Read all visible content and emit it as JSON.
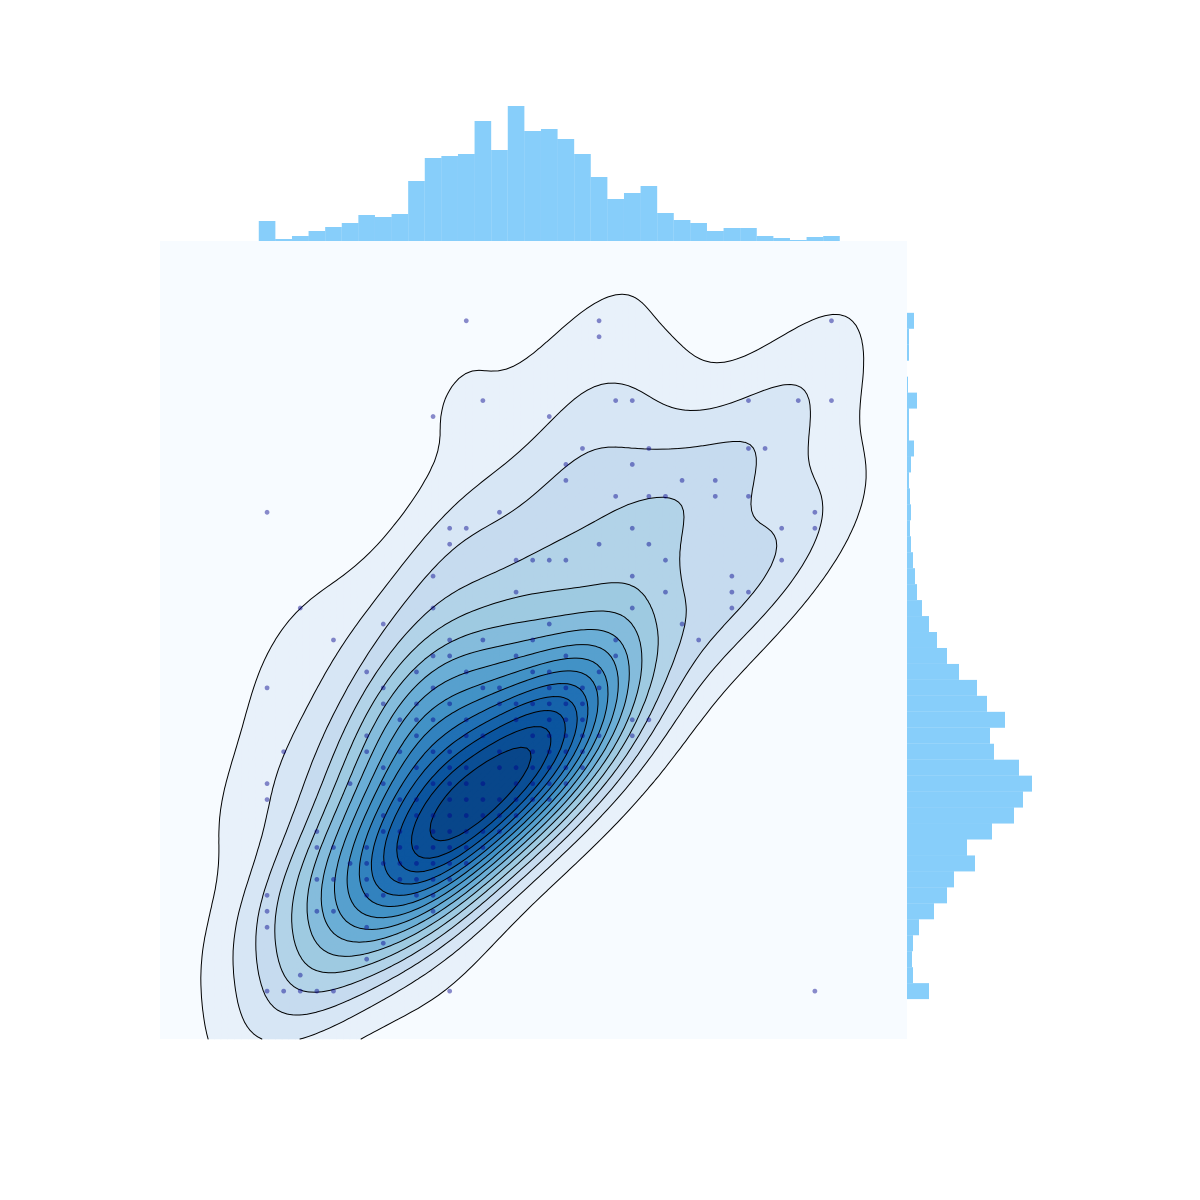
{
  "chart_data": [
    {
      "type": "scatter",
      "x": [
        12,
        20,
        34,
        20,
        13,
        21,
        22,
        29,
        32,
        34,
        10,
        17,
        19,
        23,
        29,
        30,
        18,
        22,
        18,
        25,
        27,
        21,
        23,
        24,
        27,
        29,
        0,
        14,
        33,
        11,
        12,
        22,
        31,
        33,
        11,
        20,
        23,
        15,
        16,
        17,
        18,
        24,
        31,
        10,
        22,
        28,
        15,
        24,
        28,
        29,
        2,
        10,
        22,
        28,
        7,
        17,
        25,
        4,
        11,
        13,
        16,
        21,
        26,
        10,
        11,
        15,
        18,
        21,
        6,
        9,
        12,
        16,
        17,
        20,
        0,
        7,
        10,
        13,
        14,
        17,
        18,
        19,
        20,
        7,
        9,
        11,
        14,
        15,
        16,
        17,
        18,
        19,
        8,
        9,
        10,
        12,
        15,
        17,
        18,
        19,
        22,
        23,
        6,
        9,
        12,
        13,
        16,
        17,
        18,
        19,
        20,
        22,
        1,
        6,
        8,
        10,
        11,
        14,
        16,
        17,
        18,
        19,
        7,
        9,
        11,
        12,
        14,
        15,
        16,
        17,
        18,
        19,
        0,
        5,
        7,
        10,
        11,
        12,
        13,
        15,
        16,
        17,
        18,
        0,
        8,
        9,
        11,
        12,
        13,
        14,
        15,
        16,
        17,
        7,
        9,
        10,
        11,
        12,
        13,
        14,
        15,
        3,
        7,
        8,
        10,
        11,
        12,
        13,
        14,
        3,
        4,
        6,
        8,
        9,
        10,
        11,
        12,
        13,
        5,
        6,
        7,
        8,
        9,
        10,
        11,
        12,
        3,
        4,
        6,
        8,
        9,
        10,
        11,
        0,
        6,
        7,
        9,
        10,
        0,
        3,
        4,
        10,
        0,
        6,
        7,
        6,
        2,
        0,
        1,
        2,
        3,
        4,
        11,
        33
      ],
      "y": [
        42,
        42,
        42,
        41,
        37,
        37,
        37,
        37,
        37,
        37,
        36,
        36,
        34,
        34,
        34,
        34,
        33,
        33,
        32,
        32,
        32,
        31,
        31,
        31,
        31,
        31,
        30,
        30,
        30,
        29,
        29,
        29,
        29,
        29,
        28,
        28,
        28,
        27,
        27,
        27,
        27,
        27,
        27,
        26,
        26,
        26,
        25,
        25,
        25,
        25,
        24,
        24,
        24,
        24,
        23,
        23,
        23,
        22,
        22,
        22,
        22,
        22,
        22,
        21,
        21,
        21,
        21,
        21,
        20,
        20,
        20,
        20,
        20,
        20,
        19,
        19,
        19,
        19,
        19,
        19,
        19,
        19,
        19,
        18,
        18,
        18,
        18,
        18,
        18,
        18,
        18,
        18,
        17,
        17,
        17,
        17,
        17,
        17,
        17,
        17,
        17,
        17,
        16,
        16,
        16,
        16,
        16,
        16,
        16,
        16,
        16,
        16,
        15,
        15,
        15,
        15,
        15,
        15,
        15,
        15,
        15,
        15,
        14,
        14,
        14,
        14,
        14,
        14,
        14,
        14,
        14,
        14,
        13,
        13,
        13,
        13,
        13,
        13,
        13,
        13,
        13,
        13,
        13,
        12,
        12,
        12,
        12,
        12,
        12,
        12,
        12,
        12,
        12,
        11,
        11,
        11,
        11,
        11,
        11,
        11,
        11,
        10,
        10,
        10,
        10,
        10,
        10,
        10,
        10,
        9,
        9,
        9,
        9,
        9,
        9,
        9,
        9,
        9,
        8,
        8,
        8,
        8,
        8,
        8,
        8,
        8,
        7,
        7,
        7,
        7,
        7,
        7,
        7,
        6,
        6,
        6,
        6,
        6,
        5,
        5,
        5,
        5,
        4,
        4,
        3,
        2,
        1,
        0,
        0,
        0,
        0,
        0,
        0,
        0
      ],
      "xlim": [
        -6.45,
        38.55
      ],
      "ylim": [
        -3,
        47
      ],
      "color": "#00008b",
      "alpha": 0.45,
      "background": "#f7fbff",
      "kde": true,
      "kde_levels": 15,
      "kde_thresh": 0.05,
      "kde_colors": [
        "#e8f1fa",
        "#c6dbef",
        "#9ecae1",
        "#6baed6",
        "#4292c6",
        "#2171b5",
        "#0b559f",
        "#08468a"
      ],
      "kde_line_color": "#000000"
    },
    {
      "type": "histogram",
      "bins": [
        -0.5,
        0.5,
        1.5,
        2.5,
        3.5,
        4.5,
        5.5,
        6.5,
        7.5,
        8.5,
        9.5,
        10.5,
        11.5,
        12.5,
        13.5,
        14.5,
        15.5,
        16.5,
        17.5,
        18.5,
        19.5,
        20.5,
        21.5,
        22.5,
        23.5,
        24.5,
        25.5,
        26.5,
        27.5,
        28.5,
        29.5,
        30.5,
        31.5,
        32.5,
        33.5,
        34.5
      ],
      "values": [
        20,
        2,
        5,
        10,
        14,
        18,
        26,
        24,
        27,
        60,
        83,
        85,
        87,
        120,
        91,
        135,
        110,
        112,
        102,
        87,
        64,
        42,
        48,
        55,
        28,
        21,
        18,
        10,
        13,
        13,
        5,
        3,
        1,
        4,
        5
      ],
      "ylim": [
        0,
        140
      ],
      "color": "#87cefa"
    },
    {
      "type": "histogram",
      "orientation": "horizontal",
      "bins": [
        -0.5,
        0.5,
        1.5,
        2.5,
        3.5,
        4.5,
        5.5,
        6.5,
        7.5,
        8.5,
        9.5,
        10.5,
        11.5,
        12.5,
        13.5,
        14.5,
        15.5,
        16.5,
        17.5,
        18.5,
        19.5,
        20.5,
        21.5,
        22.5,
        23.5,
        24.5,
        25.5,
        26.5,
        27.5,
        28.5,
        29.5,
        30.5,
        31.5,
        32.5,
        33.5,
        34.5,
        35.5,
        36.5,
        37.5,
        38.5,
        39.5,
        40.5,
        41.5,
        42.5
      ],
      "values": [
        22,
        6,
        5,
        6,
        12,
        27,
        40,
        47,
        68,
        60,
        85,
        107,
        116,
        125,
        112,
        87,
        83,
        98,
        80,
        70,
        52,
        40,
        30,
        22,
        15,
        10,
        8,
        6,
        4,
        3,
        4,
        3,
        2,
        4,
        7,
        2,
        2,
        10,
        1,
        0,
        2,
        2,
        7
      ],
      "xlim": [
        0,
        140
      ],
      "color": "#87cefa"
    }
  ]
}
